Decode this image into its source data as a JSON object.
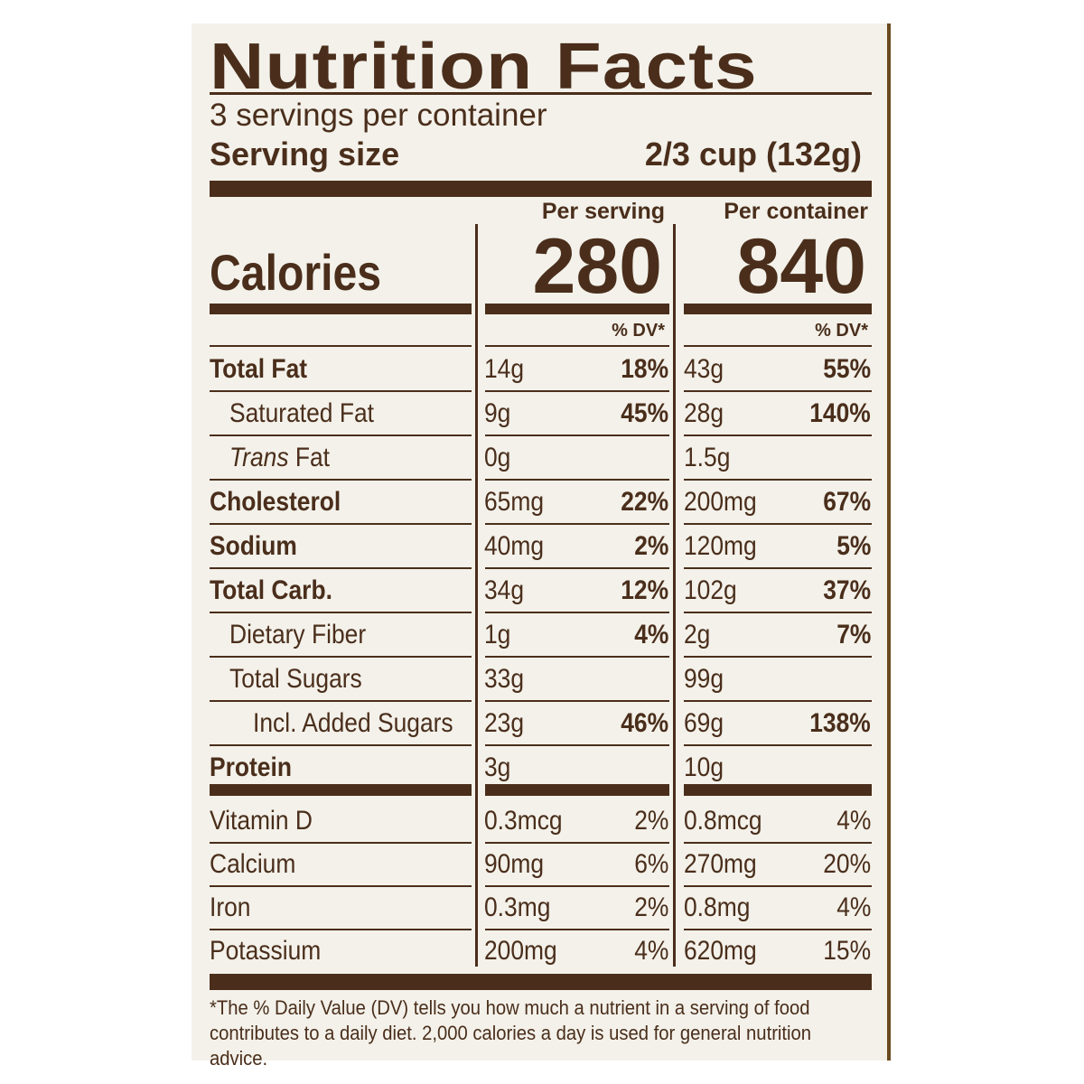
{
  "title": "Nutrition Facts",
  "servings_per_container": "3 servings per container",
  "serving_size_label": "Serving size",
  "serving_size_value": "2/3 cup (132g)",
  "col_per_serving": "Per serving",
  "col_per_container": "Per container",
  "calories_label": "Calories",
  "calories_per_serving": "280",
  "calories_per_container": "840",
  "dv_header": "% DV*",
  "nutrients": [
    {
      "name": "Total Fat",
      "serving_amount": "14g",
      "serving_dv": "18%",
      "container_amount": "43g",
      "container_dv": "55%"
    },
    {
      "name": "Saturated Fat",
      "serving_amount": "9g",
      "serving_dv": "45%",
      "container_amount": "28g",
      "container_dv": "140%"
    },
    {
      "name": "Trans",
      "name_suffix": " Fat",
      "serving_amount": "0g",
      "serving_dv": "",
      "container_amount": "1.5g",
      "container_dv": ""
    },
    {
      "name": "Cholesterol",
      "serving_amount": "65mg",
      "serving_dv": "22%",
      "container_amount": "200mg",
      "container_dv": "67%"
    },
    {
      "name": "Sodium",
      "serving_amount": "40mg",
      "serving_dv": "2%",
      "container_amount": "120mg",
      "container_dv": "5%"
    },
    {
      "name": "Total Carb.",
      "serving_amount": "34g",
      "serving_dv": "12%",
      "container_amount": "102g",
      "container_dv": "37%"
    },
    {
      "name": "Dietary Fiber",
      "serving_amount": "1g",
      "serving_dv": "4%",
      "container_amount": "2g",
      "container_dv": "7%"
    },
    {
      "name": "Total Sugars",
      "serving_amount": "33g",
      "serving_dv": "",
      "container_amount": "99g",
      "container_dv": ""
    },
    {
      "name": "Incl. Added Sugars",
      "serving_amount": "23g",
      "serving_dv": "46%",
      "container_amount": "69g",
      "container_dv": "138%"
    },
    {
      "name": "Protein",
      "serving_amount": "3g",
      "serving_dv": "",
      "container_amount": "10g",
      "container_dv": ""
    }
  ],
  "vitamins": [
    {
      "name": "Vitamin D",
      "serving_amount": "0.3mcg",
      "serving_dv": "2%",
      "container_amount": "0.8mcg",
      "container_dv": "4%"
    },
    {
      "name": "Calcium",
      "serving_amount": "90mg",
      "serving_dv": "6%",
      "container_amount": "270mg",
      "container_dv": "20%"
    },
    {
      "name": "Iron",
      "serving_amount": "0.3mg",
      "serving_dv": "2%",
      "container_amount": "0.8mg",
      "container_dv": "4%"
    },
    {
      "name": "Potassium",
      "serving_amount": "200mg",
      "serving_dv": "4%",
      "container_amount": "620mg",
      "container_dv": "15%"
    }
  ],
  "footnote": "*The % Daily Value (DV) tells you how much a nutrient in a serving of food contributes to a daily diet. 2,000 calories a day is used for general nutrition advice."
}
